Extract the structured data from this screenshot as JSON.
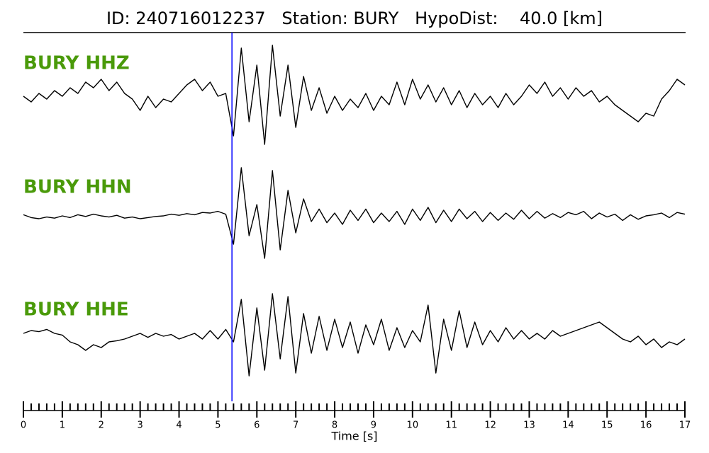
{
  "chart_data": {
    "type": "seismogram",
    "title": "ID: 240716012237   Station: BURY   HypoDist:    40.0 [km]",
    "xlabel": "Time [s]",
    "xlim": [
      0,
      17
    ],
    "xticks": [
      0,
      1,
      2,
      3,
      4,
      5,
      6,
      7,
      8,
      9,
      10,
      11,
      12,
      13,
      14,
      15,
      16,
      17
    ],
    "minor_ticks_per_major": 5,
    "ylim": [
      -1,
      1
    ],
    "label_color": "#4a9a0a",
    "marker_line": {
      "x": 5.36,
      "color": "#0000ff"
    },
    "x": [
      0,
      0.2,
      0.4,
      0.6,
      0.8,
      1,
      1.2,
      1.4,
      1.6,
      1.8,
      2,
      2.2,
      2.4,
      2.6,
      2.8,
      3,
      3.2,
      3.4,
      3.6,
      3.8,
      4,
      4.2,
      4.4,
      4.6,
      4.8,
      5,
      5.2,
      5.4,
      5.6,
      5.8,
      6,
      6.2,
      6.4,
      6.6,
      6.8,
      7,
      7.2,
      7.4,
      7.6,
      7.8,
      8,
      8.2,
      8.4,
      8.6,
      8.8,
      9,
      9.2,
      9.4,
      9.6,
      9.8,
      10,
      10.2,
      10.4,
      10.6,
      10.8,
      11,
      11.2,
      11.4,
      11.6,
      11.8,
      12,
      12.2,
      12.4,
      12.6,
      12.8,
      13,
      13.2,
      13.4,
      13.6,
      13.8,
      14,
      14.2,
      14.4,
      14.6,
      14.8,
      15,
      15.2,
      15.4,
      15.6,
      15.8,
      16,
      16.2,
      16.4,
      16.6,
      16.8,
      17
    ],
    "series": [
      {
        "name": "BURY HHZ",
        "color": "#000000",
        "values": [
          0.05,
          -0.05,
          0.1,
          0.0,
          0.15,
          0.05,
          0.2,
          0.1,
          0.3,
          0.2,
          0.35,
          0.15,
          0.3,
          0.1,
          0.0,
          -0.2,
          0.05,
          -0.15,
          0.0,
          -0.05,
          0.1,
          0.25,
          0.35,
          0.15,
          0.3,
          0.05,
          0.1,
          -0.65,
          0.9,
          -0.4,
          0.6,
          -0.8,
          0.95,
          -0.3,
          0.6,
          -0.5,
          0.4,
          -0.2,
          0.2,
          -0.25,
          0.05,
          -0.2,
          0.0,
          -0.15,
          0.1,
          -0.2,
          0.05,
          -0.1,
          0.3,
          -0.1,
          0.35,
          0.0,
          0.25,
          -0.05,
          0.2,
          -0.1,
          0.15,
          -0.15,
          0.1,
          -0.1,
          0.05,
          -0.15,
          0.1,
          -0.1,
          0.05,
          0.25,
          0.1,
          0.3,
          0.05,
          0.2,
          0.0,
          0.2,
          0.05,
          0.15,
          -0.05,
          0.05,
          -0.1,
          -0.2,
          -0.3,
          -0.4,
          -0.25,
          -0.3,
          0.0,
          0.15,
          0.35,
          0.25
        ]
      },
      {
        "name": "BURY HHN",
        "color": "#000000",
        "values": [
          0.02,
          -0.03,
          -0.05,
          -0.02,
          -0.04,
          0.0,
          -0.03,
          0.02,
          -0.01,
          0.03,
          0.0,
          -0.02,
          0.01,
          -0.04,
          -0.02,
          -0.05,
          -0.03,
          -0.01,
          0.0,
          0.03,
          0.01,
          0.04,
          0.02,
          0.06,
          0.05,
          0.08,
          0.03,
          -0.5,
          0.85,
          -0.35,
          0.2,
          -0.75,
          0.8,
          -0.6,
          0.45,
          -0.3,
          0.3,
          -0.1,
          0.12,
          -0.12,
          0.05,
          -0.15,
          0.1,
          -0.08,
          0.12,
          -0.12,
          0.05,
          -0.1,
          0.08,
          -0.15,
          0.12,
          -0.08,
          0.15,
          -0.12,
          0.1,
          -0.1,
          0.12,
          -0.05,
          0.08,
          -0.1,
          0.06,
          -0.08,
          0.05,
          -0.06,
          0.1,
          -0.05,
          0.08,
          -0.04,
          0.04,
          -0.03,
          0.06,
          0.02,
          0.08,
          -0.05,
          0.05,
          -0.02,
          0.03,
          -0.08,
          0.02,
          -0.06,
          0.0,
          0.02,
          0.05,
          -0.03,
          0.06,
          0.03
        ]
      },
      {
        "name": "BURY HHE",
        "color": "#000000",
        "values": [
          0.05,
          0.1,
          0.08,
          0.12,
          0.05,
          0.02,
          -0.1,
          -0.15,
          -0.25,
          -0.15,
          -0.2,
          -0.1,
          -0.08,
          -0.05,
          0.0,
          0.05,
          -0.02,
          0.05,
          0.0,
          0.03,
          -0.05,
          0.0,
          0.05,
          -0.05,
          0.1,
          -0.05,
          0.12,
          -0.1,
          0.65,
          -0.7,
          0.5,
          -0.6,
          0.75,
          -0.4,
          0.7,
          -0.65,
          0.4,
          -0.3,
          0.35,
          -0.25,
          0.3,
          -0.2,
          0.25,
          -0.3,
          0.2,
          -0.15,
          0.3,
          -0.25,
          0.15,
          -0.2,
          0.1,
          -0.1,
          0.55,
          -0.65,
          0.3,
          -0.25,
          0.45,
          -0.2,
          0.25,
          -0.15,
          0.1,
          -0.1,
          0.15,
          -0.05,
          0.1,
          -0.05,
          0.05,
          -0.05,
          0.1,
          0.0,
          0.05,
          0.1,
          0.15,
          0.2,
          0.25,
          0.15,
          0.05,
          -0.05,
          -0.1,
          0.0,
          -0.15,
          -0.05,
          -0.2,
          -0.1,
          -0.15,
          -0.05
        ]
      }
    ]
  }
}
